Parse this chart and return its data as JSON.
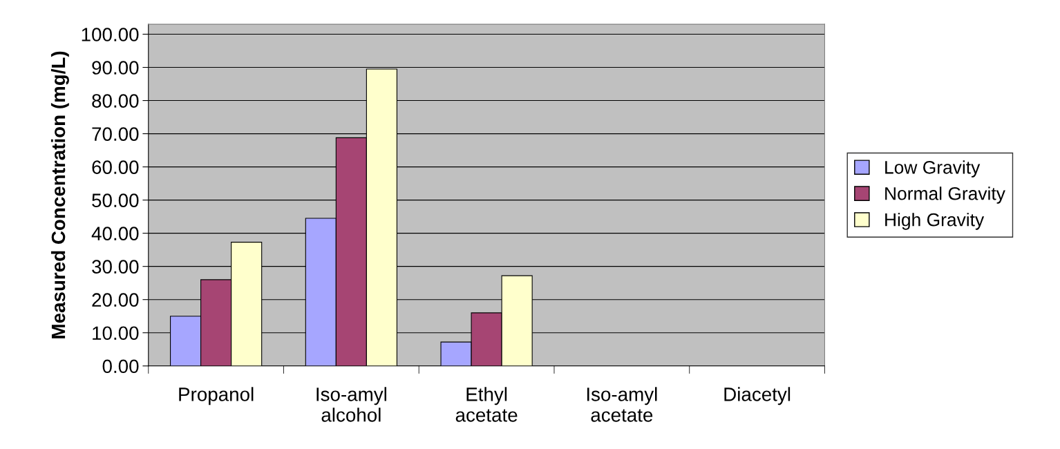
{
  "chart_data": {
    "type": "bar",
    "ylabel": "Measured Concentration (mg/L)",
    "categories": [
      "Propanol",
      "Iso-amyl\nalcohol",
      "Ethyl\nacetate",
      "Iso-amyl\nacetate",
      "Diacetyl"
    ],
    "series": [
      {
        "name": "Low Gravity",
        "color": "#a6a6ff",
        "values": [
          15,
          44.5,
          7.2,
          0,
          0
        ]
      },
      {
        "name": "Normal Gravity",
        "color": "#a64573",
        "values": [
          26,
          68.8,
          16,
          0,
          0
        ]
      },
      {
        "name": "High Gravity",
        "color": "#ffffcc",
        "values": [
          37.3,
          89.5,
          27.2,
          0,
          0
        ]
      }
    ],
    "ylim": [
      0,
      103
    ],
    "yticks": [
      {
        "value": 0,
        "label": "0.00"
      },
      {
        "value": 10,
        "label": "10.00"
      },
      {
        "value": 20,
        "label": "20.00"
      },
      {
        "value": 30,
        "label": "30.00"
      },
      {
        "value": 40,
        "label": "40.00"
      },
      {
        "value": 50,
        "label": "50.00"
      },
      {
        "value": 60,
        "label": "60.00"
      },
      {
        "value": 70,
        "label": "70.00"
      },
      {
        "value": 80,
        "label": "80.00"
      },
      {
        "value": 90,
        "label": "90.00"
      },
      {
        "value": 100,
        "label": "100.00"
      }
    ],
    "grid": "y",
    "legend": "right"
  }
}
